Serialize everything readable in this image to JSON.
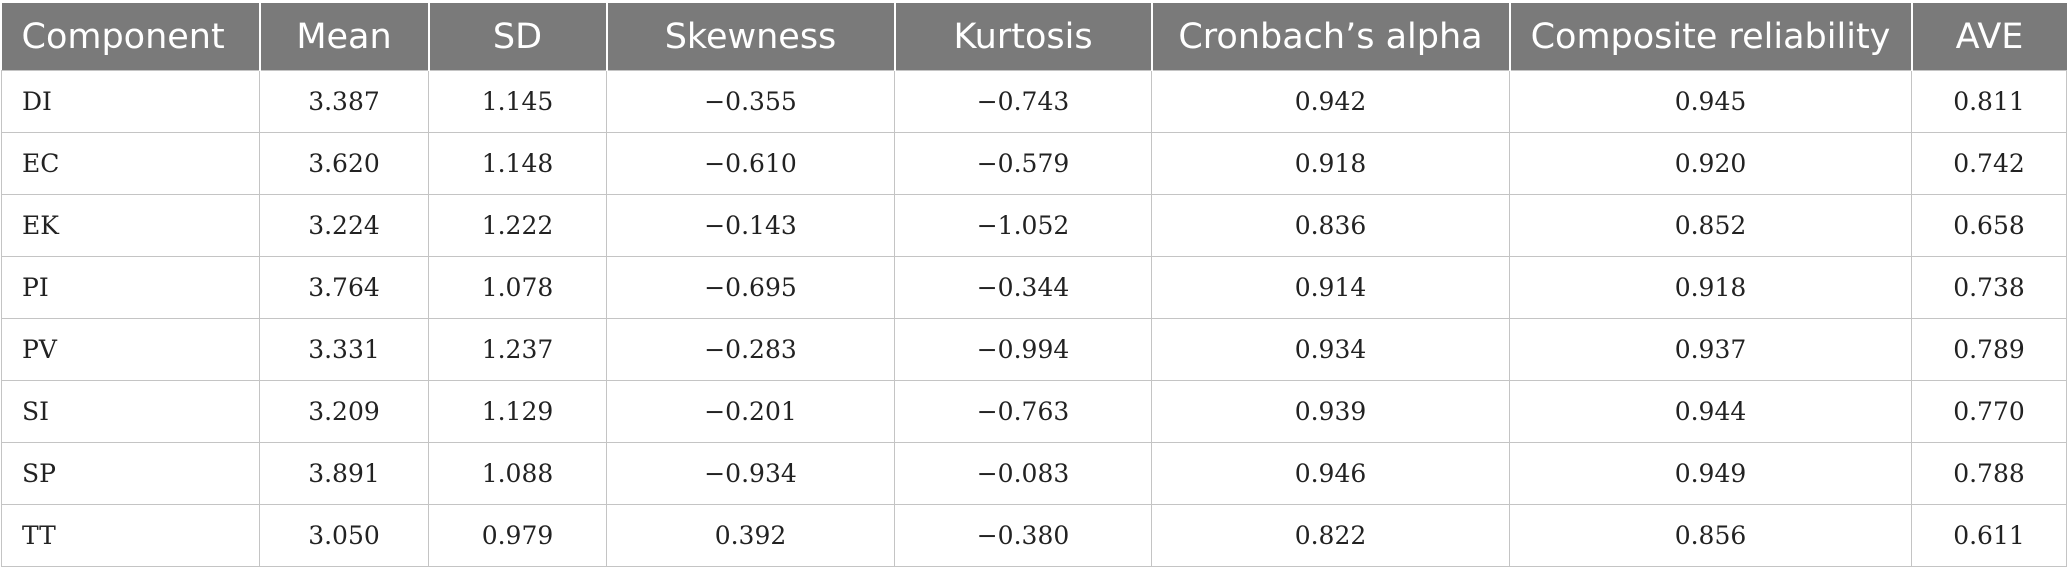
{
  "table": {
    "headers": [
      "Component",
      "Mean",
      "SD",
      "Skewness",
      "Kurtosis",
      "Cronbach’s alpha",
      "Composite reliability",
      "AVE"
    ],
    "rows": [
      [
        "DI",
        "3.387",
        "1.145",
        "−0.355",
        "−0.743",
        "0.942",
        "0.945",
        "0.811"
      ],
      [
        "EC",
        "3.620",
        "1.148",
        "−0.610",
        "−0.579",
        "0.918",
        "0.920",
        "0.742"
      ],
      [
        "EK",
        "3.224",
        "1.222",
        "−0.143",
        "−1.052",
        "0.836",
        "0.852",
        "0.658"
      ],
      [
        "PI",
        "3.764",
        "1.078",
        "−0.695",
        "−0.344",
        "0.914",
        "0.918",
        "0.738"
      ],
      [
        "PV",
        "3.331",
        "1.237",
        "−0.283",
        "−0.994",
        "0.934",
        "0.937",
        "0.789"
      ],
      [
        "SI",
        "3.209",
        "1.129",
        "−0.201",
        "−0.763",
        "0.939",
        "0.944",
        "0.770"
      ],
      [
        "SP",
        "3.891",
        "1.088",
        "−0.934",
        "−0.083",
        "0.946",
        "0.949",
        "0.788"
      ],
      [
        "TT",
        "3.050",
        "0.979",
        "0.392",
        "−0.380",
        "0.822",
        "0.856",
        "0.611"
      ]
    ]
  },
  "colors": {
    "header_bg": "#7a7a7a",
    "header_text": "#ffffff",
    "grid": "#c4c4c4"
  }
}
